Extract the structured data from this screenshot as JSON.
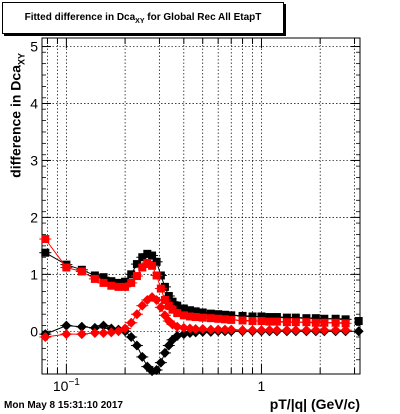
{
  "title": {
    "text": "Fitted difference in Dca",
    "sub": "XY",
    "suffix": " for Global Rec All EtapT"
  },
  "footer_timestamp": "Mon May  8 15:31:10 2017",
  "colors": {
    "black": "#000000",
    "red": "#ff0000",
    "grid": "#000000"
  },
  "chart_data": {
    "type": "scatter",
    "title": "Fitted difference in Dca_XY for Global Rec All EtapT",
    "xlabel": "pT/|q| (GeV/c)",
    "ylabel": "difference in Dca_XY",
    "ylabel_main": "difference in Dca",
    "ylabel_sub": "XY",
    "x_scale": "log",
    "xlim": [
      0.075,
      3.2
    ],
    "ylim": [
      -0.75,
      5.15
    ],
    "grid": true,
    "x_tick_labels": [
      {
        "value": 0.1,
        "label": "10",
        "exp": "−1"
      },
      {
        "value": 1,
        "label": "1"
      }
    ],
    "y_tick_labels": [
      "0",
      "1",
      "2",
      "3",
      "4",
      "5"
    ],
    "series": [
      {
        "color": "#000000",
        "marker": "square",
        "x": [
          0.078,
          0.1,
          0.12,
          0.14,
          0.155,
          0.17,
          0.185,
          0.2,
          0.215,
          0.23,
          0.245,
          0.26,
          0.275,
          0.29,
          0.305,
          0.32,
          0.335,
          0.35,
          0.37,
          0.4,
          0.43,
          0.46,
          0.5,
          0.55,
          0.6,
          0.65,
          0.7,
          0.8,
          0.9,
          1.0,
          1.1,
          1.2,
          1.35,
          1.5,
          1.7,
          1.9,
          2.1,
          2.4,
          2.7
        ],
        "y": [
          1.38,
          1.17,
          1.08,
          0.98,
          0.95,
          0.88,
          0.85,
          0.87,
          1.0,
          1.18,
          1.3,
          1.36,
          1.33,
          1.22,
          0.98,
          0.78,
          0.62,
          0.52,
          0.45,
          0.4,
          0.37,
          0.35,
          0.33,
          0.31,
          0.3,
          0.29,
          0.28,
          0.27,
          0.26,
          0.26,
          0.25,
          0.25,
          0.24,
          0.24,
          0.23,
          0.23,
          0.22,
          0.22,
          0.21
        ]
      },
      {
        "color": "#ff0000",
        "marker": "square",
        "x": [
          0.078,
          0.1,
          0.12,
          0.14,
          0.155,
          0.17,
          0.185,
          0.2,
          0.215,
          0.23,
          0.245,
          0.26,
          0.275,
          0.29,
          0.305,
          0.32,
          0.335,
          0.35,
          0.37,
          0.4,
          0.43,
          0.46,
          0.5,
          0.55,
          0.6,
          0.65,
          0.7,
          0.8,
          0.9,
          1.0,
          1.1,
          1.2,
          1.35,
          1.5,
          1.7,
          1.9,
          2.1,
          2.4,
          2.7
        ],
        "y": [
          1.62,
          1.12,
          1.05,
          0.92,
          0.85,
          0.8,
          0.78,
          0.78,
          0.85,
          0.97,
          1.12,
          1.2,
          1.15,
          0.98,
          0.75,
          0.55,
          0.45,
          0.38,
          0.32,
          0.28,
          0.26,
          0.25,
          0.24,
          0.23,
          0.22,
          0.21,
          0.2,
          0.19,
          0.18,
          0.18,
          0.17,
          0.17,
          0.16,
          0.16,
          0.16,
          0.15,
          0.15,
          0.15,
          0.14
        ]
      },
      {
        "color": "#000000",
        "marker": "diamond",
        "x": [
          0.078,
          0.1,
          0.12,
          0.14,
          0.155,
          0.17,
          0.185,
          0.2,
          0.215,
          0.23,
          0.245,
          0.26,
          0.275,
          0.29,
          0.305,
          0.32,
          0.335,
          0.35,
          0.37,
          0.4,
          0.43,
          0.46,
          0.5,
          0.55,
          0.6,
          0.65,
          0.7,
          0.8,
          0.9,
          1.0,
          1.1,
          1.2,
          1.35,
          1.5,
          1.7,
          1.9,
          2.1,
          2.4,
          2.7
        ],
        "y": [
          -0.05,
          0.1,
          0.08,
          0.06,
          0.1,
          0.05,
          0.03,
          0.0,
          -0.1,
          -0.25,
          -0.45,
          -0.62,
          -0.7,
          -0.68,
          -0.55,
          -0.38,
          -0.25,
          -0.15,
          -0.08,
          -0.05,
          -0.03,
          -0.02,
          -0.01,
          -0.01,
          0.0,
          0.0,
          0.0,
          0.0,
          0.0,
          0.0,
          0.0,
          0.0,
          0.0,
          0.0,
          0.0,
          0.0,
          0.0,
          0.0,
          0.0
        ]
      },
      {
        "color": "#ff0000",
        "marker": "diamond",
        "x": [
          0.078,
          0.1,
          0.12,
          0.14,
          0.155,
          0.17,
          0.185,
          0.2,
          0.215,
          0.23,
          0.245,
          0.26,
          0.275,
          0.29,
          0.305,
          0.32,
          0.335,
          0.35,
          0.37,
          0.4,
          0.43,
          0.46,
          0.5,
          0.55,
          0.6,
          0.65,
          0.7,
          0.8,
          0.9,
          1.0,
          1.1,
          1.2,
          1.35,
          1.5,
          1.7,
          1.9,
          2.1,
          2.4,
          2.7
        ],
        "y": [
          -0.1,
          -0.05,
          -0.05,
          -0.03,
          -0.03,
          -0.02,
          0.0,
          0.05,
          0.15,
          0.3,
          0.45,
          0.55,
          0.6,
          0.55,
          0.42,
          0.28,
          0.18,
          0.12,
          0.08,
          0.06,
          0.05,
          0.04,
          0.04,
          0.03,
          0.03,
          0.03,
          0.03,
          0.02,
          0.02,
          0.02,
          0.02,
          0.02,
          0.02,
          0.02,
          0.02,
          0.02,
          0.02,
          0.02,
          0.02
        ]
      }
    ],
    "edge_points": [
      {
        "x": 3.15,
        "y": 0.18,
        "color": "#000000",
        "marker": "square"
      },
      {
        "x": 3.15,
        "y": 0.0,
        "color": "#000000",
        "marker": "diamond"
      }
    ]
  }
}
